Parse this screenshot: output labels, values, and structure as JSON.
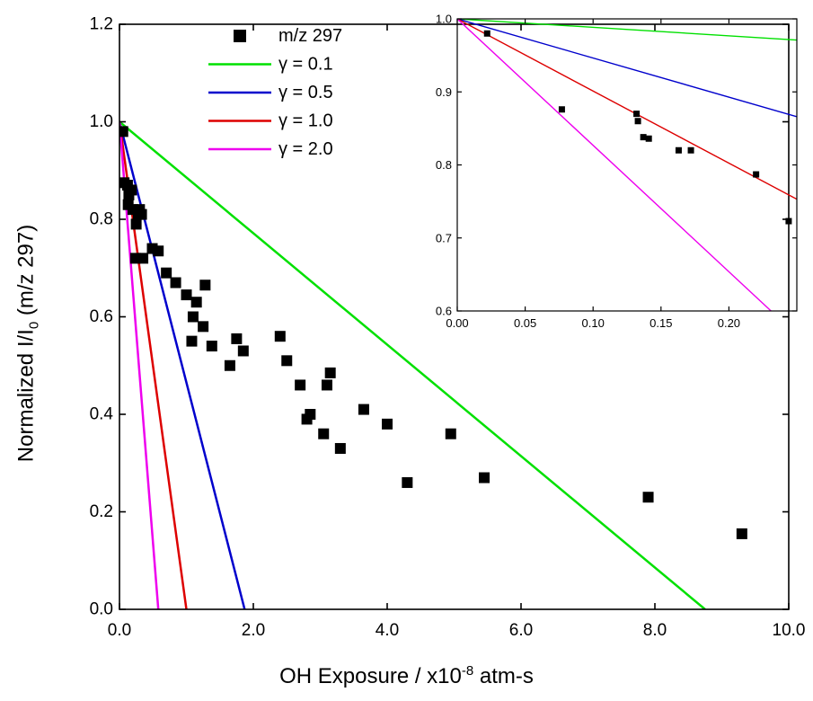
{
  "chart_data": [
    {
      "type": "scatter",
      "role": "main",
      "xlabel": {
        "prefix": "OH Exposure / x10",
        "sup": "-8",
        "suffix": " atm-s"
      },
      "ylabel": {
        "prefix": "Normalized I/I",
        "sub": "0",
        "suffix": " (m/z 297)"
      },
      "xlim": [
        0,
        10
      ],
      "ylim": [
        0,
        1.2
      ],
      "xticks": [
        0,
        2,
        4,
        6,
        8,
        10
      ],
      "xtick_labels": [
        "0.0",
        "2.0",
        "4.0",
        "6.0",
        "8.0",
        "10.0"
      ],
      "yticks": [
        0,
        0.2,
        0.4,
        0.6,
        0.8,
        1.0,
        1.2
      ],
      "ytick_labels": [
        "0.0",
        "0.2",
        "0.4",
        "0.6",
        "0.8",
        "1.0",
        "1.2"
      ],
      "grid": false,
      "legend": "top-left",
      "series": [
        {
          "name": "m/z 297",
          "kind": "scatter",
          "color": "#000000",
          "points": [
            [
              0.05,
              0.98
            ],
            [
              0.07,
              0.875
            ],
            [
              0.12,
              0.87
            ],
            [
              0.14,
              0.85
            ],
            [
              0.13,
              0.83
            ],
            [
              0.18,
              0.86
            ],
            [
              0.2,
              0.82
            ],
            [
              0.25,
              0.79
            ],
            [
              0.24,
              0.72
            ],
            [
              0.28,
              0.81
            ],
            [
              0.3,
              0.82
            ],
            [
              0.33,
              0.81
            ],
            [
              0.35,
              0.72
            ],
            [
              0.49,
              0.74
            ],
            [
              0.58,
              0.735
            ],
            [
              0.7,
              0.69
            ],
            [
              0.84,
              0.67
            ],
            [
              1.0,
              0.645
            ],
            [
              1.1,
              0.6
            ],
            [
              1.15,
              0.63
            ],
            [
              1.08,
              0.55
            ],
            [
              1.25,
              0.58
            ],
            [
              1.28,
              0.665
            ],
            [
              1.38,
              0.54
            ],
            [
              1.65,
              0.5
            ],
            [
              1.75,
              0.555
            ],
            [
              1.85,
              0.53
            ],
            [
              2.4,
              0.56
            ],
            [
              2.5,
              0.51
            ],
            [
              2.7,
              0.46
            ],
            [
              2.8,
              0.39
            ],
            [
              2.85,
              0.4
            ],
            [
              3.05,
              0.36
            ],
            [
              3.1,
              0.46
            ],
            [
              3.15,
              0.485
            ],
            [
              3.3,
              0.33
            ],
            [
              3.65,
              0.41
            ],
            [
              4.0,
              0.38
            ],
            [
              4.3,
              0.26
            ],
            [
              4.95,
              0.36
            ],
            [
              5.45,
              0.27
            ],
            [
              7.9,
              0.23
            ],
            [
              9.3,
              0.155
            ]
          ]
        },
        {
          "name": "γ = 0.1",
          "kind": "line",
          "color": "#00e000",
          "points": [
            [
              0,
              1.0
            ],
            [
              8.75,
              0.0
            ]
          ]
        },
        {
          "name": "γ = 0.5",
          "kind": "line",
          "color": "#0000cc",
          "points": [
            [
              0,
              1.0
            ],
            [
              1.87,
              0.0
            ]
          ]
        },
        {
          "name": "γ = 1.0",
          "kind": "line",
          "color": "#dd0000",
          "points": [
            [
              0,
              1.0
            ],
            [
              1.0,
              0.0
            ]
          ]
        },
        {
          "name": "γ = 2.0",
          "kind": "line",
          "color": "#ee00ee",
          "points": [
            [
              0,
              1.0
            ],
            [
              0.58,
              0.0
            ]
          ]
        }
      ]
    },
    {
      "type": "scatter",
      "role": "inset",
      "xlim": [
        0,
        0.25
      ],
      "ylim": [
        0.6,
        1.0
      ],
      "xticks": [
        0,
        0.05,
        0.1,
        0.15,
        0.2
      ],
      "xtick_labels": [
        "0.00",
        "0.05",
        "0.10",
        "0.15",
        "0.20"
      ],
      "yticks": [
        0.6,
        0.7,
        0.8,
        0.9,
        1.0
      ],
      "ytick_labels": [
        "0.6",
        "0.7",
        "0.8",
        "0.9",
        "1.0"
      ],
      "grid": false,
      "series": [
        {
          "name": "m/z 297",
          "kind": "scatter",
          "color": "#000000",
          "points": [
            [
              0.022,
              0.98
            ],
            [
              0.077,
              0.876
            ],
            [
              0.132,
              0.87
            ],
            [
              0.133,
              0.86
            ],
            [
              0.137,
              0.838
            ],
            [
              0.141,
              0.836
            ],
            [
              0.163,
              0.82
            ],
            [
              0.172,
              0.82
            ],
            [
              0.22,
              0.787
            ],
            [
              0.244,
              0.723
            ]
          ]
        },
        {
          "name": "γ = 0.1",
          "kind": "line",
          "color": "#00e000",
          "points": [
            [
              0,
              1.0
            ],
            [
              0.25,
              0.971
            ]
          ]
        },
        {
          "name": "γ = 0.5",
          "kind": "line",
          "color": "#0000cc",
          "points": [
            [
              0,
              1.0
            ],
            [
              0.25,
              0.866
            ]
          ]
        },
        {
          "name": "γ = 1.0",
          "kind": "line",
          "color": "#dd0000",
          "points": [
            [
              0,
              1.0
            ],
            [
              0.25,
              0.753
            ]
          ]
        },
        {
          "name": "γ = 2.0",
          "kind": "line",
          "color": "#ee00ee",
          "points": [
            [
              0,
              1.0
            ],
            [
              0.231,
              0.6
            ]
          ]
        }
      ]
    }
  ]
}
